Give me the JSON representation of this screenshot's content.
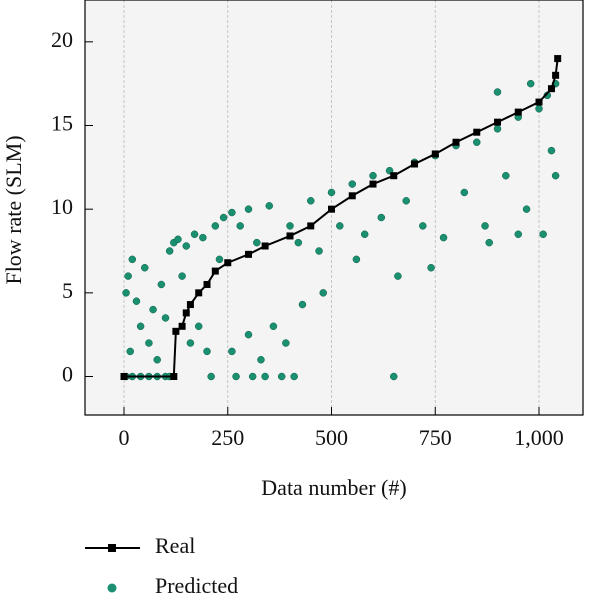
{
  "chart_data": {
    "type": "line",
    "xlabel": "Data number (#)",
    "ylabel": "Flow rate (SLM)",
    "xlim": [
      -94,
      1106
    ],
    "ylim": [
      -2.3,
      22.5
    ],
    "xticks": [
      0,
      250,
      500,
      750,
      {
        "value": 1000,
        "label": "1,000"
      }
    ],
    "yticks": [
      0,
      5,
      10,
      15,
      20
    ],
    "grid": true,
    "series": [
      {
        "name": "Real",
        "color": "#000000",
        "type": "line",
        "x": [
          0,
          120,
          125,
          140,
          150,
          160,
          180,
          200,
          220,
          250,
          300,
          340,
          400,
          450,
          500,
          550,
          600,
          650,
          700,
          750,
          800,
          850,
          900,
          950,
          1000,
          1030,
          1040,
          1045
        ],
        "values": [
          0,
          0,
          2.7,
          3,
          3.8,
          4.3,
          5,
          5.5,
          6.3,
          6.8,
          7.3,
          7.8,
          8.4,
          9,
          10,
          10.8,
          11.5,
          12,
          12.7,
          13.3,
          14,
          14.6,
          15.2,
          15.8,
          16.4,
          17.2,
          18,
          19
        ]
      },
      {
        "name": "Predicted",
        "color": "#1a9070",
        "type": "scatter",
        "x": [
          5,
          20,
          40,
          60,
          80,
          100,
          110,
          5,
          10,
          15,
          20,
          30,
          40,
          50,
          60,
          70,
          80,
          90,
          100,
          110,
          120,
          130,
          140,
          150,
          160,
          170,
          180,
          190,
          200,
          210,
          220,
          230,
          240,
          260,
          270,
          280,
          300,
          310,
          320,
          340,
          350,
          380,
          390,
          400,
          410,
          420,
          430,
          450,
          470,
          500,
          520,
          550,
          580,
          600,
          620,
          650,
          640,
          680,
          700,
          720,
          750,
          770,
          800,
          820,
          850,
          870,
          900,
          920,
          950,
          970,
          1000,
          1010,
          1020,
          1030,
          1040,
          260,
          300,
          330,
          360,
          480,
          560,
          660,
          740,
          880,
          950,
          1040,
          900,
          980
        ],
        "values": [
          0,
          0,
          0,
          0,
          0,
          0,
          0,
          5,
          6,
          1.5,
          7,
          4.5,
          3,
          6.5,
          2,
          4,
          1,
          5.5,
          3.5,
          7.5,
          8,
          8.2,
          6,
          7.8,
          2,
          8.5,
          3,
          8.3,
          1.5,
          0,
          9,
          7,
          9.5,
          9.8,
          0,
          9,
          10,
          0,
          8,
          0,
          10.2,
          0,
          2,
          9,
          0,
          8,
          4.3,
          10.5,
          7.5,
          11,
          9,
          11.5,
          8.5,
          12,
          9.5,
          0,
          12.3,
          10.5,
          12.8,
          9,
          13.2,
          8.3,
          13.8,
          11,
          14,
          9,
          14.8,
          12,
          15.5,
          10,
          16,
          8.5,
          16.8,
          13.5,
          17.5,
          1.5,
          2.5,
          1,
          3,
          5,
          7,
          6,
          6.5,
          8,
          8.5,
          12,
          17,
          17.5
        ]
      }
    ]
  }
}
